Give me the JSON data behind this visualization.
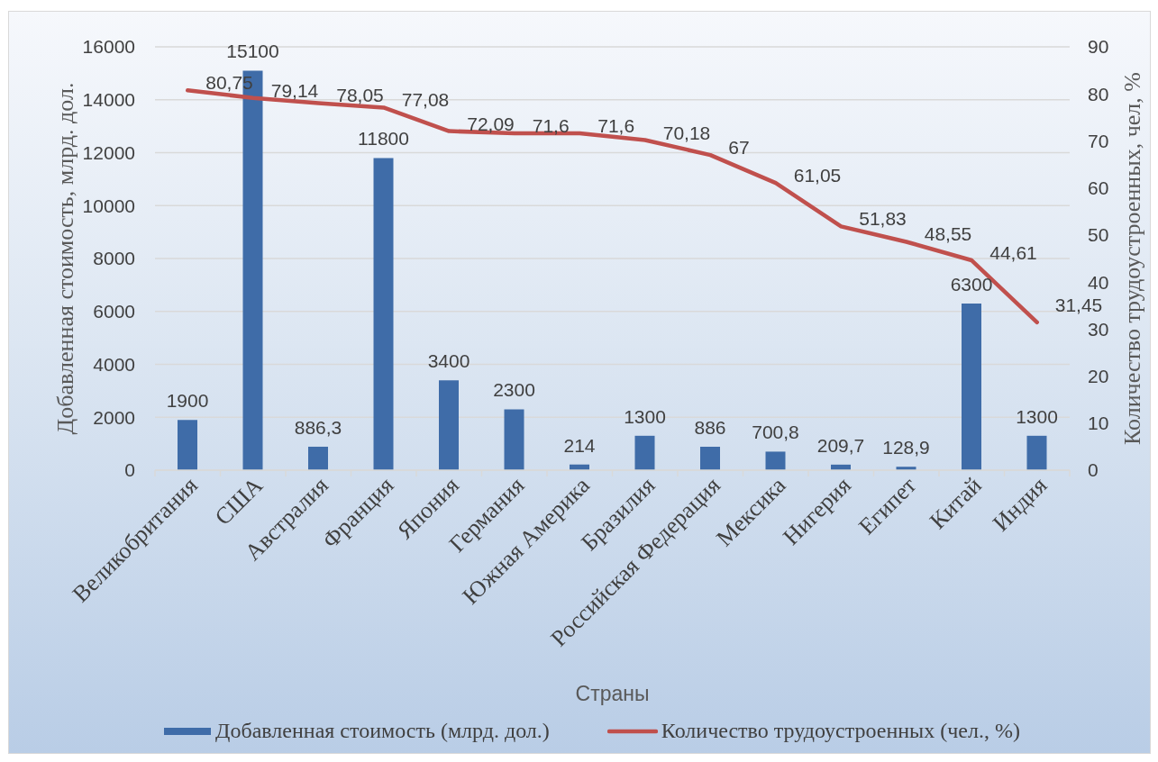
{
  "chart_data": {
    "type": "bar",
    "categories": [
      "Великобритания",
      "США",
      "Австралия",
      "Франция",
      "Япония",
      "Германия",
      "Южная Америка",
      "Бразилия",
      "Российская Федерация",
      "Мексика",
      "Нигерия",
      "Египет",
      "Китай",
      "Индия"
    ],
    "series": [
      {
        "name": "Добавленная стоимость (млрд. дол.)",
        "color": "#3f6ca8",
        "values": [
          1900,
          15100,
          886.3,
          11800,
          3400,
          2300,
          214,
          1300,
          886,
          700.8,
          209.7,
          128.9,
          6300,
          1300
        ],
        "value_labels": [
          "1900",
          "15100",
          "886,3",
          "11800",
          "3400",
          "2300",
          "214",
          "1300",
          "886",
          "700,8",
          "209,7",
          "128,9",
          "6300",
          "1300"
        ]
      },
      {
        "type": "line",
        "axis": "y2",
        "name": "Количество трудоустроенных (чел., %)",
        "color": "#c0504d",
        "values": [
          80.75,
          79.14,
          78.05,
          77.08,
          72.09,
          71.6,
          71.6,
          70.18,
          67,
          61.05,
          51.83,
          48.55,
          44.61,
          31.45
        ],
        "value_labels": [
          "80,75",
          "79,14",
          "78,05",
          "77,08",
          "72,09",
          "71,6",
          "71,6",
          "70,18",
          "67",
          "61,05",
          "51,83",
          "48,55",
          "44,61",
          "31,45"
        ]
      }
    ],
    "xlabel": "Страны",
    "ylabel": "Добавленная стоимость, млрд. дол.",
    "y2label": "Количество трудоустроенных, чел, %",
    "ylim": [
      0,
      16000
    ],
    "yticks": [
      0,
      2000,
      4000,
      6000,
      8000,
      10000,
      12000,
      14000,
      16000
    ],
    "y2lim": [
      0,
      90
    ],
    "y2ticks": [
      0,
      10,
      20,
      30,
      40,
      50,
      60,
      70,
      80,
      90
    ],
    "grid": "y",
    "legend": "bottom",
    "marker": "none",
    "line_style": "solid"
  }
}
